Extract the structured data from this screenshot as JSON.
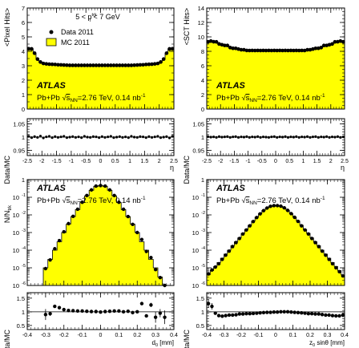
{
  "colors": {
    "mc_fill": "#ffff00",
    "mc_line": "#000000",
    "data_marker": "#000000",
    "axis": "#000000",
    "unity_line": "#000000"
  },
  "atlas_label": "ATLAS",
  "collision_label": {
    "system": "Pb+Pb",
    "sqrt": "√",
    "s": "s",
    "sub": "NN",
    "rest": "=2.76 TeV, 0.14 nb",
    "sup": "-1"
  },
  "selection": {
    "prefix": "5 < p",
    "sup": "trk",
    "sub": "T",
    "suffix": " < 7 GeV"
  },
  "legend": {
    "data": "Data 2011",
    "mc": "MC 2011",
    "placement": "top-left, panel 1"
  },
  "chart_data": [
    {
      "type": "area",
      "title": "",
      "ylabel": "<Pixel Hits>",
      "xlabel": "",
      "ylim": [
        0,
        7
      ],
      "yticks": [
        "0",
        "1",
        "2",
        "3",
        "4",
        "5",
        "6",
        "7"
      ],
      "x": [
        -2.45,
        -2.35,
        -2.25,
        -2.15,
        -2.05,
        -1.95,
        -1.85,
        -1.75,
        -1.65,
        -1.55,
        -1.45,
        -1.35,
        -1.25,
        -1.15,
        -1.05,
        -0.95,
        -0.85,
        -0.75,
        -0.65,
        -0.55,
        -0.45,
        -0.35,
        -0.25,
        -0.15,
        -0.05,
        0.05,
        0.15,
        0.25,
        0.35,
        0.45,
        0.55,
        0.65,
        0.75,
        0.85,
        0.95,
        1.05,
        1.15,
        1.25,
        1.35,
        1.45,
        1.55,
        1.65,
        1.75,
        1.85,
        1.95,
        2.05,
        2.15,
        2.25,
        2.35,
        2.45
      ],
      "series": [
        {
          "name": "MC 2011",
          "values": [
            4.15,
            4.15,
            3.85,
            3.45,
            3.25,
            3.15,
            3.12,
            3.1,
            3.1,
            3.08,
            3.06,
            3.05,
            3.04,
            3.03,
            3.02,
            3.02,
            3.02,
            3.02,
            3.02,
            3.02,
            3.02,
            3.02,
            3.02,
            3.02,
            3.02,
            3.02,
            3.02,
            3.02,
            3.02,
            3.02,
            3.02,
            3.02,
            3.02,
            3.02,
            3.02,
            3.02,
            3.03,
            3.04,
            3.05,
            3.06,
            3.08,
            3.1,
            3.1,
            3.12,
            3.15,
            3.25,
            3.45,
            3.85,
            4.15,
            4.15
          ]
        },
        {
          "name": "Data 2011",
          "values": [
            4.18,
            4.17,
            3.87,
            3.46,
            3.26,
            3.16,
            3.13,
            3.11,
            3.1,
            3.09,
            3.07,
            3.06,
            3.05,
            3.04,
            3.03,
            3.03,
            3.03,
            3.03,
            3.03,
            3.03,
            3.03,
            3.03,
            3.03,
            3.03,
            3.03,
            3.03,
            3.03,
            3.03,
            3.03,
            3.03,
            3.03,
            3.03,
            3.03,
            3.03,
            3.03,
            3.03,
            3.04,
            3.05,
            3.06,
            3.07,
            3.09,
            3.1,
            3.11,
            3.13,
            3.16,
            3.26,
            3.46,
            3.87,
            4.17,
            4.18
          ]
        }
      ]
    },
    {
      "type": "area",
      "title": "",
      "ylabel": "<SCT Hits>",
      "xlabel": "",
      "ylim": [
        0,
        14
      ],
      "yticks": [
        "0",
        "2",
        "4",
        "6",
        "8",
        "10",
        "12",
        "14"
      ],
      "x": [
        -2.45,
        -2.35,
        -2.25,
        -2.15,
        -2.05,
        -1.95,
        -1.85,
        -1.75,
        -1.65,
        -1.55,
        -1.45,
        -1.35,
        -1.25,
        -1.15,
        -1.05,
        -0.95,
        -0.85,
        -0.75,
        -0.65,
        -0.55,
        -0.45,
        -0.35,
        -0.25,
        -0.15,
        -0.05,
        0.05,
        0.15,
        0.25,
        0.35,
        0.45,
        0.55,
        0.65,
        0.75,
        0.85,
        0.95,
        1.05,
        1.15,
        1.25,
        1.35,
        1.45,
        1.55,
        1.65,
        1.75,
        1.85,
        1.95,
        2.05,
        2.15,
        2.25,
        2.35,
        2.45
      ],
      "series": [
        {
          "name": "MC 2011",
          "values": [
            9.3,
            9.4,
            9.3,
            9.3,
            9.0,
            8.9,
            8.8,
            8.8,
            8.5,
            8.4,
            8.4,
            8.3,
            8.2,
            8.2,
            8.1,
            8.1,
            8.1,
            8.1,
            8.1,
            8.1,
            8.1,
            8.1,
            8.1,
            8.1,
            8.1,
            8.1,
            8.1,
            8.1,
            8.1,
            8.1,
            8.1,
            8.1,
            8.1,
            8.1,
            8.1,
            8.1,
            8.2,
            8.2,
            8.3,
            8.4,
            8.4,
            8.5,
            8.8,
            8.8,
            8.9,
            9.0,
            9.3,
            9.3,
            9.4,
            9.3
          ]
        },
        {
          "name": "Data 2011",
          "values": [
            9.32,
            9.42,
            9.33,
            9.31,
            9.02,
            8.91,
            8.82,
            8.81,
            8.52,
            8.42,
            8.41,
            8.31,
            8.22,
            8.21,
            8.12,
            8.11,
            8.12,
            8.11,
            8.12,
            8.11,
            8.12,
            8.11,
            8.12,
            8.11,
            8.12,
            8.11,
            8.12,
            8.11,
            8.12,
            8.11,
            8.12,
            8.11,
            8.12,
            8.11,
            8.12,
            8.11,
            8.21,
            8.22,
            8.31,
            8.41,
            8.42,
            8.52,
            8.81,
            8.82,
            8.91,
            9.02,
            9.31,
            9.33,
            9.42,
            9.32
          ]
        }
      ]
    },
    {
      "type": "scatter",
      "title": "",
      "ylabel": "Data/MC",
      "xlabel": "η",
      "xlim": [
        -2.5,
        2.5
      ],
      "ylim": [
        0.93,
        1.07
      ],
      "yticks": [
        "0.95",
        "1",
        "1.05"
      ],
      "xticks": [
        "-2.5",
        "-2",
        "-1.5",
        "-1",
        "-0.5",
        "0",
        "0.5",
        "1",
        "1.5",
        "2",
        "2.5"
      ],
      "x": [
        -2.45,
        -2.35,
        -2.25,
        -2.15,
        -2.05,
        -1.95,
        -1.85,
        -1.75,
        -1.65,
        -1.55,
        -1.45,
        -1.35,
        -1.25,
        -1.15,
        -1.05,
        -0.95,
        -0.85,
        -0.75,
        -0.65,
        -0.55,
        -0.45,
        -0.35,
        -0.25,
        -0.15,
        -0.05,
        0.05,
        0.15,
        0.25,
        0.35,
        0.45,
        0.55,
        0.65,
        0.75,
        0.85,
        0.95,
        1.05,
        1.15,
        1.25,
        1.35,
        1.45,
        1.55,
        1.65,
        1.75,
        1.85,
        1.95,
        2.05,
        2.15,
        2.25,
        2.35,
        2.45
      ],
      "values": [
        1.003,
        0.998,
        1.002,
        0.999,
        1.004,
        0.997,
        1.001,
        1.003,
        0.998,
        1.002,
        0.999,
        1.001,
        1.003,
        0.998,
        1.0,
        1.002,
        0.999,
        1.001,
        0.998,
        1.003,
        1.0,
        0.999,
        1.002,
        1.001,
        0.998,
        1.002,
        0.999,
        1.001,
        1.003,
        0.998,
        1.0,
        1.002,
        0.999,
        1.001,
        0.998,
        1.003,
        1.0,
        0.999,
        1.002,
        1.001,
        0.998,
        1.002,
        0.999,
        1.001,
        1.003,
        0.998,
        1.0,
        1.002,
        0.997,
        1.003
      ],
      "errors": 0.003
    },
    {
      "type": "scatter",
      "title": "",
      "ylabel": "Data/MC",
      "xlabel": "η",
      "xlim": [
        -2.5,
        2.5
      ],
      "ylim": [
        0.93,
        1.07
      ],
      "yticks": [
        "0.95",
        "1",
        "1.05"
      ],
      "xticks": [
        "-2.5",
        "-2",
        "-1.5",
        "-1",
        "-0.5",
        "0",
        "0.5",
        "1",
        "1.5",
        "2",
        "2.5"
      ],
      "x": [
        -2.45,
        -2.35,
        -2.25,
        -2.15,
        -2.05,
        -1.95,
        -1.85,
        -1.75,
        -1.65,
        -1.55,
        -1.45,
        -1.35,
        -1.25,
        -1.15,
        -1.05,
        -0.95,
        -0.85,
        -0.75,
        -0.65,
        -0.55,
        -0.45,
        -0.35,
        -0.25,
        -0.15,
        -0.05,
        0.05,
        0.15,
        0.25,
        0.35,
        0.45,
        0.55,
        0.65,
        0.75,
        0.85,
        0.95,
        1.05,
        1.15,
        1.25,
        1.35,
        1.45,
        1.55,
        1.65,
        1.75,
        1.85,
        1.95,
        2.05,
        2.15,
        2.25,
        2.35,
        2.45
      ],
      "values": [
        1.002,
        1.0,
        1.001,
        0.999,
        1.002,
        1.0,
        1.001,
        1.002,
        0.999,
        1.001,
        1.002,
        0.999,
        1.001,
        1.0,
        1.002,
        0.999,
        1.001,
        1.0,
        1.002,
        0.999,
        1.001,
        1.0,
        0.999,
        1.001,
        1.002,
        0.999,
        1.001,
        1.0,
        1.002,
        0.999,
        1.001,
        1.0,
        1.002,
        0.999,
        1.001,
        1.0,
        1.002,
        0.999,
        1.001,
        1.002,
        0.999,
        1.001,
        1.0,
        1.002,
        0.999,
        1.001,
        1.0,
        1.002,
        0.999,
        1.001
      ],
      "errors": 0.003
    },
    {
      "type": "area",
      "title": "",
      "ylabel": "N/N",
      "ylabel_sub": "trk",
      "xlabel": "",
      "log": true,
      "ylim": [
        1e-06,
        1
      ],
      "yticks": [
        "10",
        "10",
        "10",
        "10",
        "10",
        "10",
        "1"
      ],
      "ytick_exps": [
        "-6",
        "-5",
        "-4",
        "-3",
        "-2",
        "-1",
        ""
      ],
      "x": [
        -0.3,
        -0.275,
        -0.25,
        -0.225,
        -0.2,
        -0.175,
        -0.15,
        -0.125,
        -0.1,
        -0.075,
        -0.05,
        -0.025,
        0.0,
        0.025,
        0.05,
        0.075,
        0.1,
        0.125,
        0.15,
        0.175,
        0.2,
        0.225,
        0.25,
        0.275,
        0.3,
        0.325,
        0.35
      ],
      "series": [
        {
          "name": "MC 2011",
          "values": [
            1e-05,
            3e-05,
            0.0001,
            0.0003,
            0.001,
            0.003,
            0.008,
            0.02,
            0.05,
            0.12,
            0.25,
            0.42,
            0.47,
            0.42,
            0.25,
            0.12,
            0.05,
            0.02,
            0.008,
            0.003,
            0.001,
            0.0003,
            0.0001,
            3e-05,
            1e-05,
            3e-06,
            1e-06
          ]
        },
        {
          "name": "Data 2011",
          "values": [
            9e-06,
            2.8e-05,
            0.00012,
            0.00035,
            0.0011,
            0.0032,
            0.0083,
            0.021,
            0.052,
            0.125,
            0.26,
            0.43,
            0.46,
            0.43,
            0.26,
            0.125,
            0.052,
            0.021,
            0.0081,
            0.0029,
            0.001,
            0.0004,
            8.5e-05,
            3.8e-05,
            8e-06,
            2.8e-06,
            8e-07
          ]
        }
      ]
    },
    {
      "type": "area",
      "title": "",
      "ylabel": "",
      "xlabel": "",
      "log": true,
      "ylim": [
        1e-06,
        1
      ],
      "yticks": [
        "10",
        "10",
        "10",
        "10",
        "10",
        "10",
        "1"
      ],
      "ytick_exps": [
        "-6",
        "-5",
        "-4",
        "-3",
        "-2",
        "-1",
        ""
      ],
      "x": [
        -0.39,
        -0.37,
        -0.35,
        -0.33,
        -0.31,
        -0.29,
        -0.27,
        -0.25,
        -0.23,
        -0.21,
        -0.19,
        -0.17,
        -0.15,
        -0.13,
        -0.11,
        -0.09,
        -0.07,
        -0.05,
        -0.03,
        -0.01,
        0.01,
        0.03,
        0.05,
        0.07,
        0.09,
        0.11,
        0.13,
        0.15,
        0.17,
        0.19,
        0.21,
        0.23,
        0.25,
        0.27,
        0.29,
        0.31,
        0.33,
        0.35,
        0.37,
        0.39
      ],
      "series": [
        {
          "name": "MC 2011",
          "values": [
            4e-06,
            7e-06,
            1.2e-05,
            2e-05,
            3.5e-05,
            6e-05,
            0.0001,
            0.00018,
            0.0003,
            0.0005,
            0.0009,
            0.0015,
            0.0026,
            0.0045,
            0.0075,
            0.012,
            0.018,
            0.025,
            0.031,
            0.034,
            0.034,
            0.031,
            0.025,
            0.018,
            0.012,
            0.0075,
            0.0045,
            0.0026,
            0.0015,
            0.0009,
            0.0005,
            0.0003,
            0.00018,
            0.0001,
            6e-05,
            3.5e-05,
            2e-05,
            1.2e-05,
            7e-06,
            4e-06
          ]
        },
        {
          "name": "Data 2011",
          "values": [
            4.5e-06,
            7.5e-06,
            1.1e-05,
            1.7e-05,
            3e-05,
            5.2e-05,
            8.8e-05,
            0.00016,
            0.00027,
            0.00046,
            0.00083,
            0.0014,
            0.0024,
            0.0042,
            0.0071,
            0.0115,
            0.0175,
            0.0245,
            0.0305,
            0.0335,
            0.0337,
            0.0312,
            0.0251,
            0.018,
            0.0118,
            0.0073,
            0.0043,
            0.0024,
            0.0014,
            0.00083,
            0.00046,
            0.00027,
            0.00016,
            8.8e-05,
            5.2e-05,
            3e-05,
            1.7e-05,
            1e-05,
            6e-06,
            3.5e-06
          ]
        }
      ]
    },
    {
      "type": "scatter",
      "title": "",
      "ylabel": "Data/MC",
      "xlabel": "d",
      "xlabel_sub": "0",
      "xlabel_unit": " [mm]",
      "xlim": [
        -0.4,
        0.4
      ],
      "ylim": [
        0.35,
        1.7
      ],
      "yticks": [
        "0.5",
        "1",
        "1.5"
      ],
      "xticks": [
        "-0.4",
        "-0.3",
        "-0.2",
        "-0.1",
        "0",
        "0.1",
        "0.2",
        "0.3",
        "0.4"
      ],
      "x": [
        -0.3,
        -0.275,
        -0.25,
        -0.225,
        -0.2,
        -0.175,
        -0.15,
        -0.125,
        -0.1,
        -0.075,
        -0.05,
        -0.025,
        0.0,
        0.025,
        0.05,
        0.075,
        0.1,
        0.125,
        0.15,
        0.175,
        0.2,
        0.225,
        0.25,
        0.275,
        0.3,
        0.325,
        0.35
      ],
      "values": [
        0.9,
        0.93,
        1.2,
        1.15,
        1.08,
        1.05,
        1.04,
        1.03,
        1.03,
        1.02,
        1.01,
        1.01,
        0.99,
        1.01,
        1.02,
        1.03,
        1.03,
        1.0,
        1.02,
        0.97,
        1.0,
        1.3,
        0.85,
        1.25,
        0.8,
        0.95,
        0.8
      ],
      "errors": [
        0.2,
        0.08,
        0.05,
        0.04,
        0.03,
        0.02,
        0.02,
        0.015,
        0.01,
        0.01,
        0.01,
        0.01,
        0.01,
        0.01,
        0.01,
        0.01,
        0.01,
        0.015,
        0.02,
        0.02,
        0.03,
        0.04,
        0.05,
        0.08,
        0.2,
        0.15,
        0.25
      ]
    },
    {
      "type": "scatter",
      "title": "",
      "ylabel": "Data/MC",
      "xlabel": "z",
      "xlabel_sub": "0",
      "xlabel_unit": " sinθ [mm]",
      "xlim": [
        -0.4,
        0.4
      ],
      "ylim": [
        0.35,
        1.7
      ],
      "yticks": [
        "0.5",
        "1",
        "1.5"
      ],
      "xticks": [
        "-0.4",
        "-0.3",
        "-0.2",
        "-0.1",
        "0",
        "0.1",
        "0.2",
        "0.3",
        "0.4"
      ],
      "x": [
        -0.39,
        -0.37,
        -0.35,
        -0.33,
        -0.31,
        -0.29,
        -0.27,
        -0.25,
        -0.23,
        -0.21,
        -0.19,
        -0.17,
        -0.15,
        -0.13,
        -0.11,
        -0.09,
        -0.07,
        -0.05,
        -0.03,
        -0.01,
        0.01,
        0.03,
        0.05,
        0.07,
        0.09,
        0.11,
        0.13,
        0.15,
        0.17,
        0.19,
        0.21,
        0.23,
        0.25,
        0.27,
        0.29,
        0.31,
        0.33,
        0.35,
        0.37,
        0.39
      ],
      "values": [
        1.3,
        1.2,
        0.95,
        0.86,
        0.84,
        0.86,
        0.88,
        0.88,
        0.89,
        0.92,
        0.92,
        0.93,
        0.93,
        0.94,
        0.95,
        0.96,
        0.97,
        0.98,
        0.98,
        0.99,
        0.99,
        1.0,
        1.0,
        1.0,
        0.99,
        0.98,
        0.97,
        0.96,
        0.95,
        0.93,
        0.93,
        0.92,
        0.92,
        0.9,
        0.88,
        0.88,
        0.86,
        0.85,
        0.85,
        0.88
      ],
      "errors": [
        0.15,
        0.12,
        0.06,
        0.05,
        0.04,
        0.03,
        0.02,
        0.02,
        0.015,
        0.01,
        0.01,
        0.01,
        0.01,
        0.01,
        0.01,
        0.01,
        0.01,
        0.01,
        0.01,
        0.01,
        0.01,
        0.01,
        0.01,
        0.01,
        0.01,
        0.01,
        0.01,
        0.01,
        0.01,
        0.01,
        0.01,
        0.01,
        0.015,
        0.02,
        0.02,
        0.03,
        0.04,
        0.05,
        0.06,
        0.08
      ]
    }
  ]
}
